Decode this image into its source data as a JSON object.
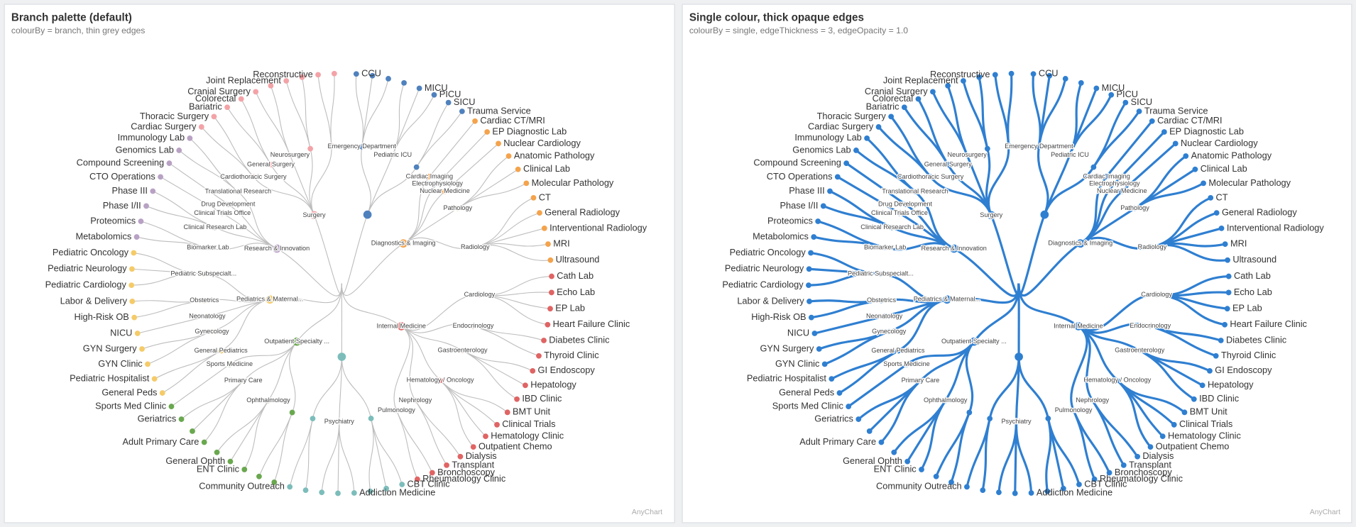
{
  "panels": [
    {
      "title": "Branch palette (default)",
      "subtitle": "colourBy = branch, thin grey edges",
      "credit": "AnyChart",
      "colour_by": "branch",
      "edge_color": "#bdbdbd"
    },
    {
      "title": "Single colour, thick opaque edges",
      "subtitle": "colourBy = single, edgeThickness = 3, edgeOpacity = 1.0",
      "credit": "AnyChart",
      "colour_by": "single",
      "color": "#2f7fd1",
      "edge_color": "#2f7fd1"
    }
  ],
  "tree": {
    "children": [
      {
        "label": null,
        "color": "#4f81bd",
        "children": [
          {
            "label": "Emergency Department",
            "children": [
              {
                "label": "CCU"
              },
              {
                "label": null
              },
              {
                "label": null
              }
            ]
          },
          {
            "label": "Pediatric ICU",
            "children": [
              {
                "label": null
              },
              {
                "label": "MICU"
              },
              {
                "label": "PICU"
              }
            ]
          },
          {
            "label": null,
            "children": [
              {
                "label": "SICU"
              },
              {
                "label": "Trauma Service"
              }
            ]
          }
        ]
      },
      {
        "label": "Diagnostics & Imaging",
        "color": "#f4a34c",
        "children": [
          {
            "label": "Cardiac Imaging",
            "children": [
              {
                "label": "Cardiac CT/MRI"
              }
            ]
          },
          {
            "label": "Electrophysiology",
            "children": [
              {
                "label": "EP Diagnostic Lab"
              }
            ]
          },
          {
            "label": "Nuclear Medicine",
            "children": [
              {
                "label": "Nuclear Cardiology"
              }
            ]
          },
          {
            "label": "Pathology",
            "children": [
              {
                "label": "Anatomic Pathology"
              },
              {
                "label": "Clinical Lab"
              },
              {
                "label": "Molecular Pathology"
              }
            ]
          },
          {
            "label": "Radiology",
            "children": [
              {
                "label": "CT"
              },
              {
                "label": "General Radiology"
              },
              {
                "label": "Interventional Radiology"
              },
              {
                "label": "MRI"
              },
              {
                "label": "Ultrasound"
              }
            ]
          }
        ]
      },
      {
        "label": "Internal Medicine",
        "color": "#e06464",
        "children": [
          {
            "label": "Cardiology",
            "children": [
              {
                "label": "Cath Lab"
              },
              {
                "label": "Echo Lab"
              },
              {
                "label": "EP Lab"
              },
              {
                "label": "Heart Failure Clinic"
              }
            ]
          },
          {
            "label": "Endocrinology",
            "children": [
              {
                "label": "Diabetes Clinic"
              },
              {
                "label": "Thyroid Clinic"
              }
            ]
          },
          {
            "label": "Gastroenterology",
            "children": [
              {
                "label": "GI Endoscopy"
              },
              {
                "label": "Hepatology"
              },
              {
                "label": "IBD Clinic"
              }
            ]
          },
          {
            "label": "Hematology / Oncology",
            "children": [
              {
                "label": "BMT Unit"
              },
              {
                "label": "Clinical Trials"
              },
              {
                "label": "Hematology Clinic"
              },
              {
                "label": "Outpatient Chemo"
              }
            ]
          },
          {
            "label": "Nephrology",
            "children": [
              {
                "label": "Dialysis"
              },
              {
                "label": "Transplant"
              }
            ]
          },
          {
            "label": "Pulmonology",
            "children": [
              {
                "label": "Bronchoscopy"
              },
              {
                "label": "Rheumatology Clinic"
              }
            ]
          }
        ]
      },
      {
        "label": null,
        "color": "#7cbdbb",
        "children": [
          {
            "label": null,
            "children": [
              {
                "label": "CBT Clinic"
              },
              {
                "label": null
              },
              {
                "label": null
              }
            ]
          },
          {
            "label": "Psychiatry",
            "children": [
              {
                "label": "Addiction Medicine"
              },
              {
                "label": null
              },
              {
                "label": null
              }
            ]
          },
          {
            "label": null,
            "children": [
              {
                "label": null
              },
              {
                "label": "Community Outreach"
              }
            ]
          }
        ]
      },
      {
        "label": "Outpatient Specialty ...",
        "color": "#6aa84f",
        "children": [
          {
            "label": null,
            "children": [
              {
                "label": null
              },
              {
                "label": null
              }
            ]
          },
          {
            "label": "Ophthalmology",
            "children": [
              {
                "label": "ENT Clinic"
              },
              {
                "label": "General Ophth"
              },
              {
                "label": null
              }
            ]
          },
          {
            "label": "Primary Care",
            "children": [
              {
                "label": "Adult Primary Care"
              },
              {
                "label": null
              },
              {
                "label": "Geriatrics"
              }
            ]
          },
          {
            "label": "Sports Medicine",
            "children": [
              {
                "label": "Sports Med Clinic"
              }
            ]
          }
        ]
      },
      {
        "label": "Pediatrics & Maternal...",
        "color": "#f5cb68",
        "children": [
          {
            "label": "General Pediatrics",
            "children": [
              {
                "label": "General Peds"
              },
              {
                "label": "Pediatric Hospitalist"
              }
            ]
          },
          {
            "label": "Gynecology",
            "children": [
              {
                "label": "GYN Clinic"
              },
              {
                "label": "GYN Surgery"
              }
            ]
          },
          {
            "label": "Neonatology",
            "children": [
              {
                "label": "NICU"
              }
            ]
          },
          {
            "label": "Obstetrics",
            "children": [
              {
                "label": "High-Risk OB"
              },
              {
                "label": "Labor & Delivery"
              }
            ]
          },
          {
            "label": "Pediatric Subspecialt...",
            "children": [
              {
                "label": "Pediatric Cardiology"
              },
              {
                "label": "Pediatric Neurology"
              },
              {
                "label": "Pediatric Oncology"
              }
            ]
          }
        ]
      },
      {
        "label": "Research & Innovation",
        "color": "#b8a2c4",
        "children": [
          {
            "label": "Biomarker Lab",
            "children": [
              {
                "label": "Metabolomics"
              },
              {
                "label": "Proteomics"
              }
            ]
          },
          {
            "label": "Clinical Research Lab",
            "children": [
              {
                "label": "Phase I/II"
              },
              {
                "label": "Phase III"
              }
            ]
          },
          {
            "label": "Clinical Trials Office",
            "children": [
              {
                "label": "CTO Operations"
              }
            ]
          },
          {
            "label": "Drug Development",
            "children": [
              {
                "label": "Compound Screening"
              }
            ]
          },
          {
            "label": "Translational Research",
            "children": [
              {
                "label": "Genomics Lab"
              },
              {
                "label": "Immunology Lab"
              }
            ]
          }
        ]
      },
      {
        "label": "Surgery",
        "color": "#f3a3a7",
        "children": [
          {
            "label": "Cardiothoracic Surgery",
            "children": [
              {
                "label": "Cardiac Surgery"
              },
              {
                "label": "Thoracic Surgery"
              }
            ]
          },
          {
            "label": "General Surgery",
            "children": [
              {
                "label": "Bariatric"
              },
              {
                "label": "Colorectal"
              }
            ]
          },
          {
            "label": "Neurosurgery",
            "children": [
              {
                "label": "Cranial Surgery"
              },
              {
                "label": null
              }
            ]
          },
          {
            "label": null,
            "children": [
              {
                "label": "Joint Replacement"
              },
              {
                "label": null
              }
            ]
          },
          {
            "label": null,
            "children": [
              {
                "label": "Reconstructive"
              },
              {
                "label": null
              }
            ]
          }
        ]
      }
    ]
  }
}
